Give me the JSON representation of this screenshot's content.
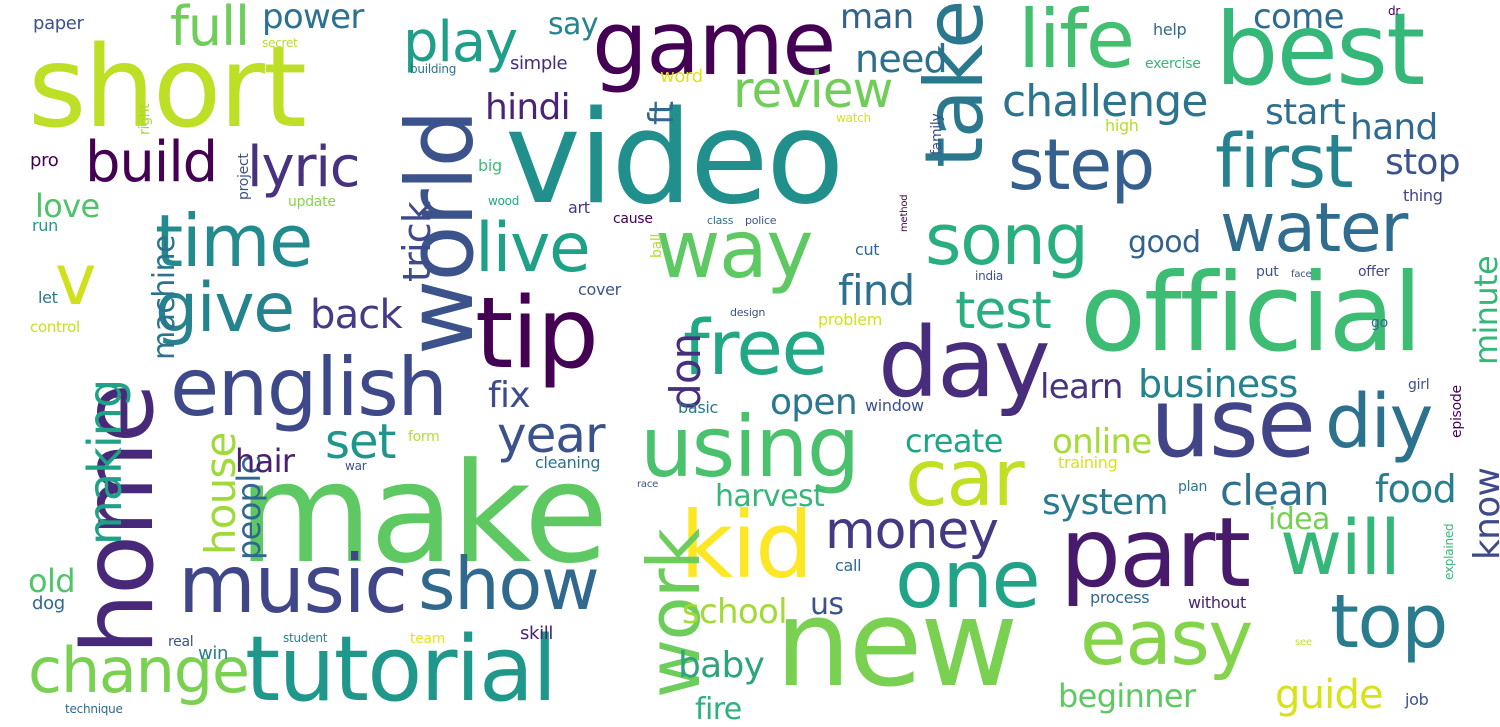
{
  "words": [
    {
      "text": "video",
      "color": "#21908d"
    },
    {
      "text": "make",
      "color": "#5ec962"
    },
    {
      "text": "new",
      "color": "#7ad151"
    },
    {
      "text": "short",
      "color": "#bddf26"
    },
    {
      "text": "game",
      "color": "#440154"
    },
    {
      "text": "best",
      "color": "#35b779"
    },
    {
      "text": "official",
      "color": "#3dbc74"
    },
    {
      "text": "take",
      "color": "#2a788e"
    },
    {
      "text": "world",
      "color": "#3b528b"
    },
    {
      "text": "home",
      "color": "#482878"
    },
    {
      "text": "tip",
      "color": "#440154"
    },
    {
      "text": "day",
      "color": "#472d7b"
    },
    {
      "text": "use",
      "color": "#414487"
    },
    {
      "text": "part",
      "color": "#481a6c"
    },
    {
      "text": "kid",
      "color": "#fde725"
    },
    {
      "text": "tutorial",
      "color": "#1f988b"
    },
    {
      "text": "english",
      "color": "#3e4989"
    },
    {
      "text": "music",
      "color": "#404688"
    },
    {
      "text": "show",
      "color": "#31688e"
    },
    {
      "text": "using",
      "color": "#4ac16d"
    },
    {
      "text": "car",
      "color": "#c2df23"
    },
    {
      "text": "life",
      "color": "#44bf70"
    },
    {
      "text": "step",
      "color": "#355f8d"
    },
    {
      "text": "first",
      "color": "#26828e"
    },
    {
      "text": "time",
      "color": "#238a8d"
    },
    {
      "text": "way",
      "color": "#5ec962"
    },
    {
      "text": "song",
      "color": "#29af7f"
    },
    {
      "text": "water",
      "color": "#2f6c8e"
    },
    {
      "text": "free",
      "color": "#22a884"
    },
    {
      "text": "one",
      "color": "#20a386"
    },
    {
      "text": "easy",
      "color": "#84d44b"
    },
    {
      "text": "top",
      "color": "#287c8e"
    },
    {
      "text": "will",
      "color": "#35b779"
    },
    {
      "text": "diy",
      "color": "#2c718e"
    },
    {
      "text": "work",
      "color": "#6ccd5a"
    },
    {
      "text": "give",
      "color": "#25838e"
    },
    {
      "text": "v",
      "color": "#d0e11c"
    },
    {
      "text": "live",
      "color": "#1fa188"
    },
    {
      "text": "change",
      "color": "#7ad151"
    },
    {
      "text": "money",
      "color": "#443a83"
    },
    {
      "text": "full",
      "color": "#6ece58"
    },
    {
      "text": "play",
      "color": "#1f9e89"
    },
    {
      "text": "build",
      "color": "#440154"
    },
    {
      "text": "lyric",
      "color": "#46327e"
    },
    {
      "text": "power",
      "color": "#2c728e"
    },
    {
      "text": "need",
      "color": "#2d708e"
    },
    {
      "text": "challenge",
      "color": "#2c738e"
    },
    {
      "text": "review",
      "color": "#6ece58"
    },
    {
      "text": "hindi",
      "color": "#482475"
    },
    {
      "text": "man",
      "color": "#33638d"
    },
    {
      "text": "come",
      "color": "#2f6b8e"
    },
    {
      "text": "start",
      "color": "#2e6e8e"
    },
    {
      "text": "hand",
      "color": "#306a8e"
    },
    {
      "text": "stop",
      "color": "#3b528b"
    },
    {
      "text": "find",
      "color": "#2d718e"
    },
    {
      "text": "test",
      "color": "#29af7f"
    },
    {
      "text": "back",
      "color": "#443b84"
    },
    {
      "text": "trick",
      "color": "#3e4a89"
    },
    {
      "text": "machine",
      "color": "#2c728e"
    },
    {
      "text": "making",
      "color": "#1fa187"
    },
    {
      "text": "house",
      "color": "#9fda3a"
    },
    {
      "text": "people",
      "color": "#31678e"
    },
    {
      "text": "hair",
      "color": "#482071"
    },
    {
      "text": "set",
      "color": "#1f968b"
    },
    {
      "text": "year",
      "color": "#3b528b"
    },
    {
      "text": "fix",
      "color": "#3e4c8a"
    },
    {
      "text": "open",
      "color": "#2a778e"
    },
    {
      "text": "don",
      "color": "#472f7d"
    },
    {
      "text": "learn",
      "color": "#463480"
    },
    {
      "text": "business",
      "color": "#26828e"
    },
    {
      "text": "online",
      "color": "#a5db36"
    },
    {
      "text": "create",
      "color": "#20a486"
    },
    {
      "text": "clean",
      "color": "#2d718e"
    },
    {
      "text": "system",
      "color": "#2a7b8e"
    },
    {
      "text": "food",
      "color": "#287d8e"
    },
    {
      "text": "idea",
      "color": "#75d054"
    },
    {
      "text": "know",
      "color": "#3e4a89"
    },
    {
      "text": "minute",
      "color": "#35b779"
    },
    {
      "text": "harvest",
      "color": "#35b779"
    },
    {
      "text": "school",
      "color": "#a2da37"
    },
    {
      "text": "baby",
      "color": "#2ea37f"
    },
    {
      "text": "fire",
      "color": "#2db27d"
    },
    {
      "text": "us",
      "color": "#3a538b"
    },
    {
      "text": "beginner",
      "color": "#5ec962"
    },
    {
      "text": "guide",
      "color": "#d8e219"
    },
    {
      "text": "good",
      "color": "#33638d"
    },
    {
      "text": "love",
      "color": "#4ec36b"
    },
    {
      "text": "old",
      "color": "#50c46a"
    },
    {
      "text": "ft",
      "color": "#31688e"
    },
    {
      "text": "say",
      "color": "#25848e"
    },
    {
      "text": "paper",
      "color": "#3b528b"
    },
    {
      "text": "run",
      "color": "#1f9a8a"
    },
    {
      "text": "let",
      "color": "#2a788e"
    },
    {
      "text": "control",
      "color": "#c8e020"
    },
    {
      "text": "pro",
      "color": "#440154"
    },
    {
      "text": "dog",
      "color": "#31688e"
    },
    {
      "text": "win",
      "color": "#287c8e"
    },
    {
      "text": "real",
      "color": "#3b528b"
    },
    {
      "text": "technique",
      "color": "#31688e"
    },
    {
      "text": "student",
      "color": "#26828e"
    },
    {
      "text": "team",
      "color": "#e5e419"
    },
    {
      "text": "skill",
      "color": "#482173"
    },
    {
      "text": "secret",
      "color": "#b5de2b"
    },
    {
      "text": "building",
      "color": "#2c728e"
    },
    {
      "text": "simple",
      "color": "#472c7a"
    },
    {
      "text": "word",
      "color": "#dde318"
    },
    {
      "text": "right",
      "color": "#a8db34"
    },
    {
      "text": "project",
      "color": "#3b528b"
    },
    {
      "text": "update",
      "color": "#86d549"
    },
    {
      "text": "big",
      "color": "#3dbc74"
    },
    {
      "text": "wood",
      "color": "#22a884"
    },
    {
      "text": "art",
      "color": "#443983"
    },
    {
      "text": "cause",
      "color": "#440154"
    },
    {
      "text": "class",
      "color": "#2c728e"
    },
    {
      "text": "police",
      "color": "#3b528b"
    },
    {
      "text": "ball",
      "color": "#b0dd2f"
    },
    {
      "text": "cover",
      "color": "#39568c"
    },
    {
      "text": "design",
      "color": "#3b528b"
    },
    {
      "text": "problem",
      "color": "#d2e21b"
    },
    {
      "text": "cut",
      "color": "#31688e"
    },
    {
      "text": "method",
      "color": "#440154"
    },
    {
      "text": "india",
      "color": "#3b528b"
    },
    {
      "text": "window",
      "color": "#3b528b"
    },
    {
      "text": "basic",
      "color": "#2a788e"
    },
    {
      "text": "form",
      "color": "#b5de2b"
    },
    {
      "text": "war",
      "color": "#3b528b"
    },
    {
      "text": "cleaning",
      "color": "#2c728e"
    },
    {
      "text": "race",
      "color": "#3b528b"
    },
    {
      "text": "call",
      "color": "#31688e"
    },
    {
      "text": "process",
      "color": "#31688e"
    },
    {
      "text": "without",
      "color": "#482475"
    },
    {
      "text": "plan",
      "color": "#2a788e"
    },
    {
      "text": "exercise",
      "color": "#35b779"
    },
    {
      "text": "help",
      "color": "#31688e"
    },
    {
      "text": "dr",
      "color": "#440154"
    },
    {
      "text": "high",
      "color": "#b5de2b"
    },
    {
      "text": "family",
      "color": "#3b528b"
    },
    {
      "text": "watch",
      "color": "#d8e219"
    },
    {
      "text": "thing",
      "color": "#414487"
    },
    {
      "text": "put",
      "color": "#3b528b"
    },
    {
      "text": "face",
      "color": "#3b528b"
    },
    {
      "text": "offer",
      "color": "#3e4989"
    },
    {
      "text": "go",
      "color": "#31688e"
    },
    {
      "text": "girl",
      "color": "#3b528b"
    },
    {
      "text": "episode",
      "color": "#440154"
    },
    {
      "text": "training",
      "color": "#d8e219"
    },
    {
      "text": "explained",
      "color": "#35b779"
    },
    {
      "text": "see",
      "color": "#c2df23"
    },
    {
      "text": "job",
      "color": "#3b528b"
    }
  ]
}
